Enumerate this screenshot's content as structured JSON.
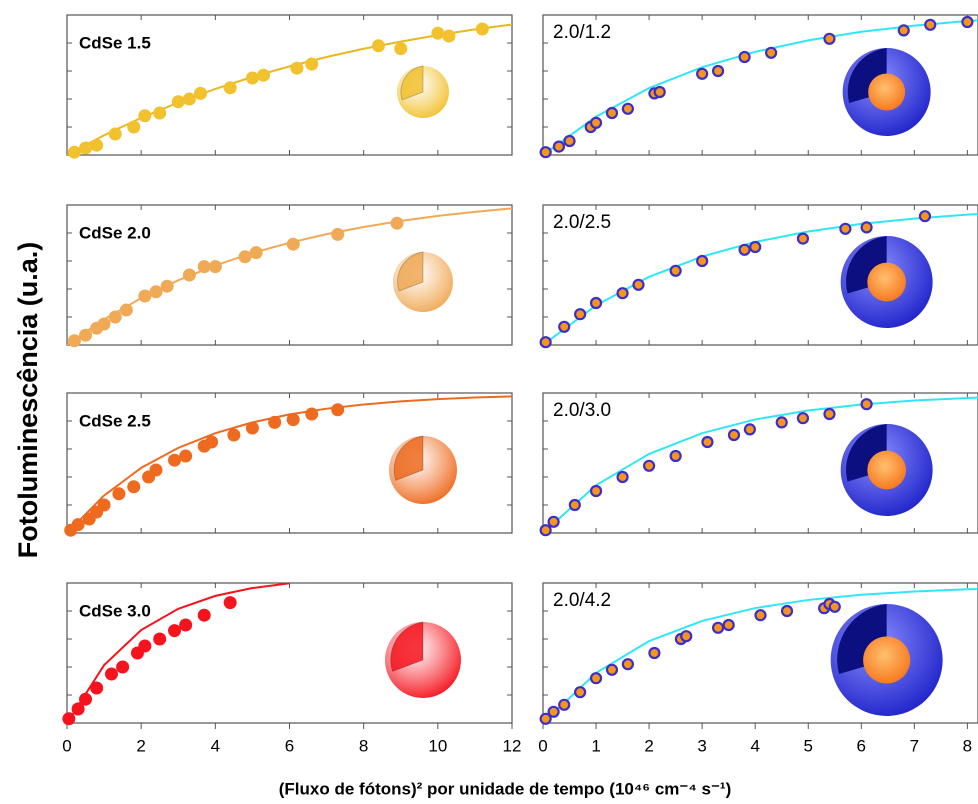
{
  "y_label": "Fotoluminescência (u.a.)",
  "x_label": "(Fluxo de fótons)² por unidade de tempo (10⁴⁶ cm⁻⁴ s⁻¹)",
  "chart_data": [
    {
      "type": "scatter",
      "title": "CdSe 1.5",
      "xlim": [
        0,
        12
      ],
      "xticks": [
        0,
        2,
        4,
        6,
        8,
        10,
        12
      ],
      "ylim": [
        0,
        1
      ],
      "yticks": [
        0,
        0.2,
        0.4,
        0.6,
        0.8,
        1
      ],
      "show_xtick_labels": false,
      "series": [
        {
          "type": "scatter",
          "color": "#f2c12e",
          "x": [
            0.2,
            0.5,
            0.8,
            1.3,
            1.8,
            2.1,
            2.5,
            3.0,
            3.3,
            3.6,
            4.4,
            5.0,
            5.3,
            6.2,
            6.6,
            8.4,
            9.0,
            10.0,
            10.3,
            11.2
          ],
          "values": [
            0.02,
            0.05,
            0.07,
            0.15,
            0.2,
            0.28,
            0.3,
            0.38,
            0.4,
            0.44,
            0.48,
            0.55,
            0.57,
            0.62,
            0.65,
            0.78,
            0.76,
            0.87,
            0.85,
            0.9
          ]
        },
        {
          "type": "line",
          "color": "#e8b820",
          "x": [
            0,
            1,
            2,
            3,
            4,
            5,
            6,
            7,
            8,
            9,
            10,
            11,
            12
          ],
          "values": [
            0,
            0.141,
            0.265,
            0.375,
            0.472,
            0.558,
            0.633,
            0.7,
            0.759,
            0.81,
            0.856,
            0.897,
            0.932
          ]
        }
      ]
    },
    {
      "type": "scatter",
      "title": "CdSe 2.0",
      "xlim": [
        0,
        12
      ],
      "xticks": [
        0,
        2,
        4,
        6,
        8,
        10,
        12
      ],
      "ylim": [
        0,
        1
      ],
      "yticks": [
        0,
        0.2,
        0.4,
        0.6,
        0.8,
        1
      ],
      "show_xtick_labels": false,
      "series": [
        {
          "type": "scatter",
          "color": "#f0a955",
          "x": [
            0.2,
            0.5,
            0.8,
            1.0,
            1.3,
            1.6,
            2.1,
            2.4,
            2.7,
            3.3,
            3.7,
            4.0,
            4.8,
            5.1,
            6.1,
            7.3,
            8.9
          ],
          "values": [
            0.03,
            0.07,
            0.12,
            0.15,
            0.2,
            0.25,
            0.35,
            0.38,
            0.42,
            0.5,
            0.56,
            0.56,
            0.63,
            0.66,
            0.72,
            0.79,
            0.87
          ]
        },
        {
          "type": "line",
          "color": "#f0a955",
          "x": [
            0,
            1,
            2,
            3,
            4,
            5,
            6,
            7,
            8,
            9,
            10,
            11,
            12
          ],
          "values": [
            0,
            0.183,
            0.335,
            0.462,
            0.568,
            0.657,
            0.73,
            0.792,
            0.843,
            0.886,
            0.922,
            0.951,
            0.976
          ]
        }
      ]
    },
    {
      "type": "scatter",
      "title": "CdSe 2.5",
      "xlim": [
        0,
        12
      ],
      "xticks": [
        0,
        2,
        4,
        6,
        8,
        10,
        12
      ],
      "ylim": [
        0,
        1
      ],
      "yticks": [
        0,
        0.2,
        0.4,
        0.6,
        0.8,
        1
      ],
      "show_xtick_labels": false,
      "series": [
        {
          "type": "scatter",
          "color": "#ee6a1e",
          "x": [
            0.1,
            0.3,
            0.6,
            0.8,
            1.0,
            1.4,
            1.8,
            2.2,
            2.4,
            2.9,
            3.2,
            3.7,
            3.9,
            4.5,
            5.0,
            5.6,
            6.1,
            6.6,
            7.3
          ],
          "values": [
            0.02,
            0.06,
            0.1,
            0.15,
            0.2,
            0.28,
            0.33,
            0.4,
            0.45,
            0.52,
            0.55,
            0.62,
            0.65,
            0.7,
            0.75,
            0.79,
            0.81,
            0.85,
            0.88
          ]
        },
        {
          "type": "line",
          "color": "#ee6a1e",
          "x": [
            0,
            1,
            2,
            3,
            4,
            5,
            6,
            7,
            8,
            9,
            10,
            11,
            12
          ],
          "values": [
            0,
            0.268,
            0.465,
            0.608,
            0.713,
            0.79,
            0.847,
            0.888,
            0.918,
            0.94,
            0.956,
            0.968,
            0.976
          ]
        }
      ]
    },
    {
      "type": "scatter",
      "title": "CdSe 3.0",
      "xlim": [
        0,
        12
      ],
      "xticks": [
        0,
        2,
        4,
        6,
        8,
        10,
        12
      ],
      "ylim": [
        0,
        1
      ],
      "yticks": [
        0,
        0.2,
        0.4,
        0.6,
        0.8,
        1
      ],
      "show_xtick_labels": true,
      "series": [
        {
          "type": "scatter",
          "color": "#f5141e",
          "x": [
            0.05,
            0.3,
            0.5,
            0.8,
            1.2,
            1.5,
            1.9,
            2.1,
            2.5,
            2.9,
            3.2,
            3.7,
            4.4
          ],
          "values": [
            0.03,
            0.1,
            0.17,
            0.25,
            0.35,
            0.4,
            0.5,
            0.55,
            0.6,
            0.66,
            0.7,
            0.77,
            0.86
          ]
        },
        {
          "type": "line",
          "color": "#f5141e",
          "x": [
            0,
            1,
            2,
            3,
            4,
            5,
            6
          ],
          "values": [
            0,
            0.413,
            0.664,
            0.816,
            0.908,
            0.964,
            0.998
          ]
        }
      ]
    },
    {
      "type": "scatter",
      "title": "2.0/1.2",
      "xlim": [
        0,
        8.2
      ],
      "xticks": [
        0,
        1,
        2,
        3,
        4,
        5,
        6,
        7,
        8
      ],
      "ylim": [
        0,
        1
      ],
      "yticks": [
        0,
        0.2,
        0.4,
        0.6,
        0.8,
        1
      ],
      "show_xtick_labels": false,
      "series": [
        {
          "type": "scatter",
          "color": "#f7941d",
          "edgecolor": "#3a2fc8",
          "x": [
            0.05,
            0.3,
            0.5,
            0.9,
            1.0,
            1.3,
            1.6,
            2.1,
            2.2,
            3.0,
            3.3,
            3.8,
            4.3,
            5.4,
            6.8,
            7.3,
            8.0
          ],
          "values": [
            0.02,
            0.06,
            0.1,
            0.2,
            0.23,
            0.3,
            0.33,
            0.44,
            0.45,
            0.58,
            0.6,
            0.7,
            0.73,
            0.83,
            0.89,
            0.93,
            0.95
          ]
        },
        {
          "type": "line",
          "color": "#2fe6f7",
          "x": [
            0,
            1,
            2,
            3,
            4,
            5,
            6,
            7,
            8,
            8.2
          ],
          "values": [
            0,
            0.274,
            0.478,
            0.627,
            0.737,
            0.819,
            0.88,
            0.924,
            0.957,
            0.962
          ]
        }
      ]
    },
    {
      "type": "scatter",
      "title": "2.0/2.5",
      "xlim": [
        0,
        8.2
      ],
      "xticks": [
        0,
        1,
        2,
        3,
        4,
        5,
        6,
        7,
        8
      ],
      "ylim": [
        0,
        1
      ],
      "yticks": [
        0,
        0.2,
        0.4,
        0.6,
        0.8,
        1
      ],
      "show_xtick_labels": false,
      "series": [
        {
          "type": "scatter",
          "color": "#f7941d",
          "edgecolor": "#3a2fc8",
          "x": [
            0.05,
            0.4,
            0.7,
            1.0,
            1.5,
            1.8,
            2.5,
            3.0,
            3.8,
            4.0,
            4.9,
            5.7,
            6.1,
            7.2
          ],
          "values": [
            0.02,
            0.13,
            0.22,
            0.3,
            0.37,
            0.43,
            0.53,
            0.6,
            0.68,
            0.7,
            0.76,
            0.83,
            0.84,
            0.92
          ]
        },
        {
          "type": "line",
          "color": "#2fe6f7",
          "x": [
            0,
            1,
            2,
            3,
            4,
            5,
            6,
            7,
            8,
            8.2
          ],
          "values": [
            0,
            0.283,
            0.487,
            0.632,
            0.736,
            0.811,
            0.865,
            0.903,
            0.931,
            0.935
          ]
        }
      ]
    },
    {
      "type": "scatter",
      "title": "2.0/3.0",
      "xlim": [
        0,
        8.2
      ],
      "xticks": [
        0,
        1,
        2,
        3,
        4,
        5,
        6,
        7,
        8
      ],
      "ylim": [
        0,
        1
      ],
      "yticks": [
        0,
        0.2,
        0.4,
        0.6,
        0.8,
        1
      ],
      "show_xtick_labels": false,
      "series": [
        {
          "type": "scatter",
          "color": "#f7941d",
          "edgecolor": "#3a2fc8",
          "x": [
            0.05,
            0.2,
            0.6,
            1.0,
            1.5,
            2.0,
            2.5,
            3.1,
            3.6,
            3.9,
            4.5,
            4.9,
            5.4,
            6.1
          ],
          "values": [
            0.02,
            0.08,
            0.2,
            0.3,
            0.4,
            0.48,
            0.55,
            0.65,
            0.7,
            0.74,
            0.79,
            0.82,
            0.85,
            0.92
          ]
        },
        {
          "type": "line",
          "color": "#2fe6f7",
          "x": [
            0,
            1,
            2,
            3,
            4,
            5,
            6,
            7,
            8,
            8.2
          ],
          "values": [
            0,
            0.341,
            0.565,
            0.713,
            0.811,
            0.875,
            0.918,
            0.946,
            0.964,
            0.967
          ]
        }
      ]
    },
    {
      "type": "scatter",
      "title": "2.0/4.2",
      "xlim": [
        0,
        8.2
      ],
      "xticks": [
        0,
        1,
        2,
        3,
        4,
        5,
        6,
        7,
        8
      ],
      "ylim": [
        0,
        1
      ],
      "yticks": [
        0,
        0.2,
        0.4,
        0.6,
        0.8,
        1
      ],
      "show_xtick_labels": true,
      "series": [
        {
          "type": "scatter",
          "color": "#f7941d",
          "edgecolor": "#3a2fc8",
          "x": [
            0.05,
            0.2,
            0.4,
            0.7,
            1.0,
            1.3,
            1.6,
            2.1,
            2.6,
            2.7,
            3.3,
            3.5,
            4.1,
            4.6,
            5.3,
            5.4,
            5.5
          ],
          "values": [
            0.03,
            0.08,
            0.13,
            0.22,
            0.32,
            0.38,
            0.42,
            0.5,
            0.6,
            0.62,
            0.68,
            0.7,
            0.77,
            0.8,
            0.82,
            0.85,
            0.83
          ]
        },
        {
          "type": "line",
          "color": "#2fe6f7",
          "x": [
            0,
            1,
            2,
            3,
            4,
            5,
            6,
            7,
            8,
            8.2
          ],
          "values": [
            0,
            0.358,
            0.585,
            0.729,
            0.821,
            0.879,
            0.916,
            0.939,
            0.955,
            0.956
          ]
        }
      ]
    }
  ]
}
